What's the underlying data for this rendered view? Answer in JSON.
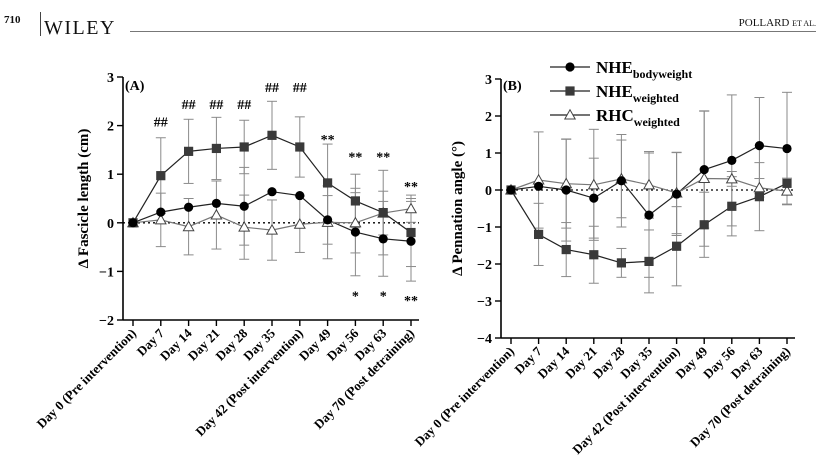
{
  "header": {
    "page_number": "710",
    "brand": "WILEY",
    "running_head_main": "POLLARD",
    "running_head_suffix": "ET AL."
  },
  "legend": {
    "entries": [
      {
        "base": "NHE",
        "sub": "bodyweight",
        "marker": "circle"
      },
      {
        "base": "NHE",
        "sub": "weighted",
        "marker": "square"
      },
      {
        "base": "RHC",
        "sub": "weighted",
        "marker": "triangle"
      }
    ]
  },
  "chart_data": [
    {
      "type": "line",
      "panel_label": "(A)",
      "ylabel": "Δ Fascicle length (cm)",
      "xlabel": "",
      "categories": [
        "Day 0 (Pre intervention)",
        "Day 7",
        "Day 14",
        "Day 21",
        "Day 28",
        "Day 35",
        "Day 42 (Post intervention)",
        "Day 49",
        "Day 56",
        "Day 63",
        "Day 70 (Post detraining)"
      ],
      "ylim": [
        -2,
        3
      ],
      "yticks": [
        -2,
        -1,
        0,
        1,
        2,
        3
      ],
      "reference_line": 0,
      "series": [
        {
          "name": "NHE bodyweight",
          "marker": "circle",
          "values": [
            0,
            0.22,
            0.32,
            0.4,
            0.34,
            0.64,
            0.56,
            0.06,
            -0.19,
            -0.33,
            -0.38
          ],
          "error": [
            0,
            null,
            null,
            null,
            0.8,
            null,
            null,
            0.5,
            0.9,
            0.77,
            0.82
          ]
        },
        {
          "name": "NHE weighted",
          "marker": "square",
          "values": [
            0,
            0.97,
            1.47,
            1.53,
            1.56,
            1.8,
            1.56,
            0.82,
            0.45,
            0.21,
            -0.2
          ],
          "error": [
            0,
            0.78,
            0.66,
            0.64,
            0.55,
            0.7,
            0.62,
            0.8,
            0.55,
            0.87,
            0.7
          ]
        },
        {
          "name": "RHC weighted",
          "marker": "triangle",
          "values": [
            0,
            0.06,
            -0.08,
            0.16,
            -0.09,
            -0.15,
            -0.03,
            0.01,
            0,
            0.2,
            0.29
          ],
          "error": [
            0,
            0.55,
            0.58,
            0.7,
            0.66,
            0.62,
            0.58,
            0.75,
            0.62,
            0.45,
            0.28
          ]
        }
      ],
      "annotations": [
        {
          "text": "##",
          "category": "Day 7",
          "y": 2.1
        },
        {
          "text": "##",
          "category": "Day 14",
          "y": 2.46
        },
        {
          "text": "##",
          "category": "Day 21",
          "y": 2.46
        },
        {
          "text": "##",
          "category": "Day 28",
          "y": 2.46
        },
        {
          "text": "##",
          "category": "Day 35",
          "y": 2.81
        },
        {
          "text": "##",
          "category": "Day 42 (Post intervention)",
          "y": 2.81
        },
        {
          "text": "**",
          "category": "Day 49",
          "y": 1.75
        },
        {
          "text": "**",
          "category": "Day 56",
          "y": 1.38
        },
        {
          "text": "**",
          "category": "Day 63",
          "y": 1.38
        },
        {
          "text": "**",
          "category": "Day 70 (Post detraining)",
          "y": 0.78
        },
        {
          "text": "*",
          "category": "Day 56",
          "y": -1.48
        },
        {
          "text": "*",
          "category": "Day 63",
          "y": -1.48
        },
        {
          "text": "**",
          "category": "Day 70 (Post detraining)",
          "y": -1.57
        }
      ]
    },
    {
      "type": "line",
      "panel_label": "(B)",
      "ylabel": "Δ Pennation angle (°)",
      "xlabel": "",
      "categories": [
        "Day 0 (Pre intervention)",
        "Day 7",
        "Day 14",
        "Day 21",
        "Day 28",
        "Day 35",
        "Day 42 (Post intervention)",
        "Day 49",
        "Day 56",
        "Day 63",
        "Day 70 (Post detraining)"
      ],
      "ylim": [
        -4,
        3
      ],
      "yticks": [
        -4,
        -3,
        -2,
        -1,
        0,
        1,
        2,
        3
      ],
      "reference_line": 0,
      "series": [
        {
          "name": "NHE bodyweight",
          "marker": "circle",
          "values": [
            0,
            0.1,
            0,
            -0.22,
            0.25,
            -0.68,
            -0.11,
            0.55,
            0.8,
            1.2,
            1.12
          ],
          "error": [
            0,
            null,
            1.38,
            1.08,
            1.25,
            1.68,
            1.12,
            1.58,
            1.77,
            1.3,
            1.52
          ]
        },
        {
          "name": "NHE weighted",
          "marker": "square",
          "values": [
            0,
            -1.2,
            -1.61,
            -1.75,
            -1.97,
            -1.93,
            -1.52,
            -0.94,
            -0.44,
            -0.18,
            0.18
          ],
          "error": [
            0,
            0.84,
            0.73,
            0.77,
            0.39,
            0.85,
            1.07,
            0.88,
            0.8,
            0.92,
            null
          ]
        },
        {
          "name": "RHC weighted",
          "marker": "triangle",
          "values": [
            0,
            0.27,
            0.17,
            0.14,
            0.3,
            0.14,
            -0.08,
            0.31,
            0.3,
            0.06,
            -0.03
          ],
          "error": [
            0,
            1.3,
            1.2,
            1.5,
            1.05,
            0.9,
            1.1,
            1.83,
            0.2,
            0.25,
            0.35
          ]
        }
      ],
      "annotations": []
    }
  ],
  "colors": {
    "nhe_bodyweight": "#000000",
    "nhe_weighted": "#3a3a3a",
    "rhc_weighted": "#ffffff",
    "axis": "#000000",
    "error_bar": "#8a8a8a"
  }
}
